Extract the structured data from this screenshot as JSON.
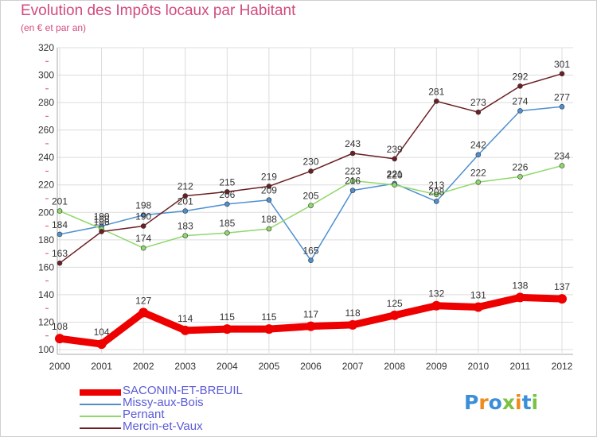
{
  "title": "Evolution des Impôts locaux par Habitant",
  "subtitle": "(en € et par an)",
  "logo": {
    "letters": [
      {
        "ch": "P",
        "color": "#3a8fd8"
      },
      {
        "ch": "r",
        "color": "#f08a1c"
      },
      {
        "ch": "o",
        "color": "#3a8fd8"
      },
      {
        "ch": "x",
        "color": "#7cc242"
      },
      {
        "ch": "i",
        "color": "#f08a1c"
      },
      {
        "ch": "t",
        "color": "#3a8fd8"
      },
      {
        "ch": "i",
        "color": "#7cc242"
      }
    ]
  },
  "chart_data": {
    "type": "line",
    "title": "Evolution des Impôts locaux par Habitant",
    "subtitle": "(en € et par an)",
    "xlabel": "",
    "ylabel": "",
    "x": [
      "2000",
      "2001",
      "2002",
      "2003",
      "2004",
      "2005",
      "2006",
      "2007",
      "2008",
      "2009",
      "2010",
      "2011",
      "2012"
    ],
    "ylim": [
      100,
      320
    ],
    "yticks": [
      100,
      120,
      140,
      160,
      180,
      200,
      220,
      240,
      260,
      280,
      300,
      320
    ],
    "grid": true,
    "legend": "bottom-left",
    "series": [
      {
        "name": "SACONIN-ET-BREUIL",
        "color": "#ee0000",
        "values": [
          108,
          104,
          127,
          114,
          115,
          115,
          117,
          118,
          125,
          132,
          131,
          138,
          137
        ]
      },
      {
        "name": "Missy-aux-Bois",
        "color": "#4f8fd0",
        "values": [
          184,
          190,
          198,
          201,
          206,
          209,
          165,
          216,
          221,
          208,
          242,
          274,
          277
        ]
      },
      {
        "name": "Pernant",
        "color": "#8fd86a",
        "values": [
          201,
          188,
          174,
          183,
          185,
          188,
          205,
          223,
          220,
          213,
          222,
          226,
          234
        ]
      },
      {
        "name": "Mercin-et-Vaux",
        "color": "#6b1f24",
        "values": [
          163,
          186,
          190,
          212,
          215,
          219,
          230,
          243,
          239,
          281,
          273,
          292,
          301
        ]
      }
    ]
  }
}
